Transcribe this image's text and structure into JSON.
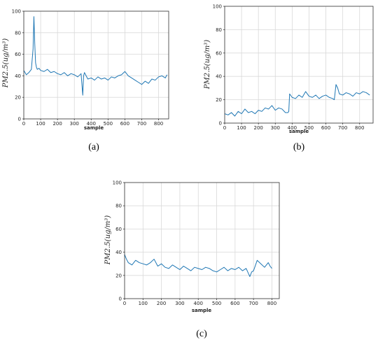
{
  "theme": {
    "line_color": "#1f77b4",
    "grid_color": "#d9d9d9",
    "axis_color": "#333333"
  },
  "chart_data": [
    {
      "type": "line",
      "panel": "(a)",
      "xlabel": "sample",
      "ylabel": "PM2.5(ug/m³)",
      "xlim": [
        0,
        860
      ],
      "ylim": [
        0,
        100
      ],
      "xticks": [
        0,
        100,
        200,
        300,
        400,
        500,
        600,
        700,
        800
      ],
      "yticks": [
        0,
        20,
        40,
        60,
        80,
        100
      ],
      "grid": true,
      "series": [
        {
          "x": [
            0,
            15,
            30,
            45,
            55,
            60,
            65,
            70,
            75,
            80,
            90,
            100,
            120,
            140,
            160,
            180,
            200,
            220,
            240,
            260,
            280,
            300,
            320,
            340,
            350,
            355,
            360,
            380,
            400,
            420,
            440,
            460,
            480,
            500,
            520,
            540,
            560,
            580,
            600,
            620,
            640,
            660,
            680,
            700,
            720,
            740,
            760,
            780,
            800,
            820,
            840,
            850
          ],
          "y": [
            45,
            41,
            43,
            46,
            65,
            95,
            70,
            52,
            48,
            46,
            47,
            45,
            44,
            46,
            43,
            44,
            42,
            41,
            43,
            40,
            42,
            41,
            39,
            42,
            22,
            40,
            43,
            37,
            38,
            36,
            39,
            37,
            38,
            36,
            39,
            38,
            40,
            41,
            44,
            40,
            38,
            36,
            34,
            32,
            35,
            33,
            37,
            36,
            39,
            40,
            38,
            41
          ]
        }
      ]
    },
    {
      "type": "line",
      "panel": "(b)",
      "xlabel": "sample",
      "ylabel": "PM2.5(ug/m³)",
      "xlim": [
        0,
        880
      ],
      "ylim": [
        0,
        100
      ],
      "xticks": [
        0,
        100,
        200,
        300,
        400,
        500,
        600,
        700,
        800
      ],
      "yticks": [
        0,
        20,
        40,
        60,
        80,
        100
      ],
      "grid": true,
      "series": [
        {
          "x": [
            0,
            20,
            40,
            60,
            80,
            100,
            120,
            140,
            160,
            180,
            200,
            220,
            240,
            260,
            280,
            300,
            320,
            340,
            360,
            375,
            380,
            385,
            400,
            420,
            440,
            460,
            480,
            500,
            520,
            540,
            560,
            580,
            600,
            620,
            640,
            650,
            660,
            670,
            680,
            700,
            720,
            740,
            760,
            780,
            800,
            820,
            840,
            860
          ],
          "y": [
            8,
            7,
            9,
            6,
            10,
            8,
            12,
            9,
            10,
            8,
            11,
            10,
            13,
            12,
            15,
            11,
            13,
            12,
            9,
            9,
            10,
            25,
            22,
            21,
            24,
            22,
            27,
            23,
            22,
            24,
            21,
            23,
            24,
            22,
            21,
            20,
            33,
            30,
            25,
            24,
            26,
            25,
            23,
            26,
            25,
            27,
            26,
            24
          ]
        }
      ]
    },
    {
      "type": "line",
      "panel": "(c)",
      "xlabel": "sample",
      "ylabel": "PM2.5(ug/m³)",
      "xlim": [
        0,
        840
      ],
      "ylim": [
        0,
        100
      ],
      "xticks": [
        0,
        100,
        200,
        300,
        400,
        500,
        600,
        700,
        800
      ],
      "yticks": [
        0,
        20,
        40,
        60,
        80,
        100
      ],
      "grid": true,
      "series": [
        {
          "x": [
            0,
            10,
            20,
            40,
            60,
            80,
            100,
            120,
            140,
            160,
            180,
            200,
            220,
            240,
            260,
            280,
            300,
            320,
            340,
            360,
            380,
            400,
            420,
            440,
            460,
            480,
            500,
            520,
            540,
            560,
            580,
            600,
            620,
            640,
            660,
            680,
            690,
            700,
            720,
            740,
            760,
            780,
            790,
            800
          ],
          "y": [
            38,
            34,
            31,
            29,
            33,
            31,
            30,
            29,
            31,
            34,
            28,
            30,
            27,
            26,
            29,
            27,
            25,
            28,
            26,
            24,
            27,
            26,
            25,
            27,
            26,
            24,
            23,
            25,
            27,
            24,
            26,
            25,
            27,
            24,
            26,
            19,
            23,
            24,
            33,
            30,
            27,
            31,
            28,
            26
          ]
        }
      ]
    }
  ]
}
